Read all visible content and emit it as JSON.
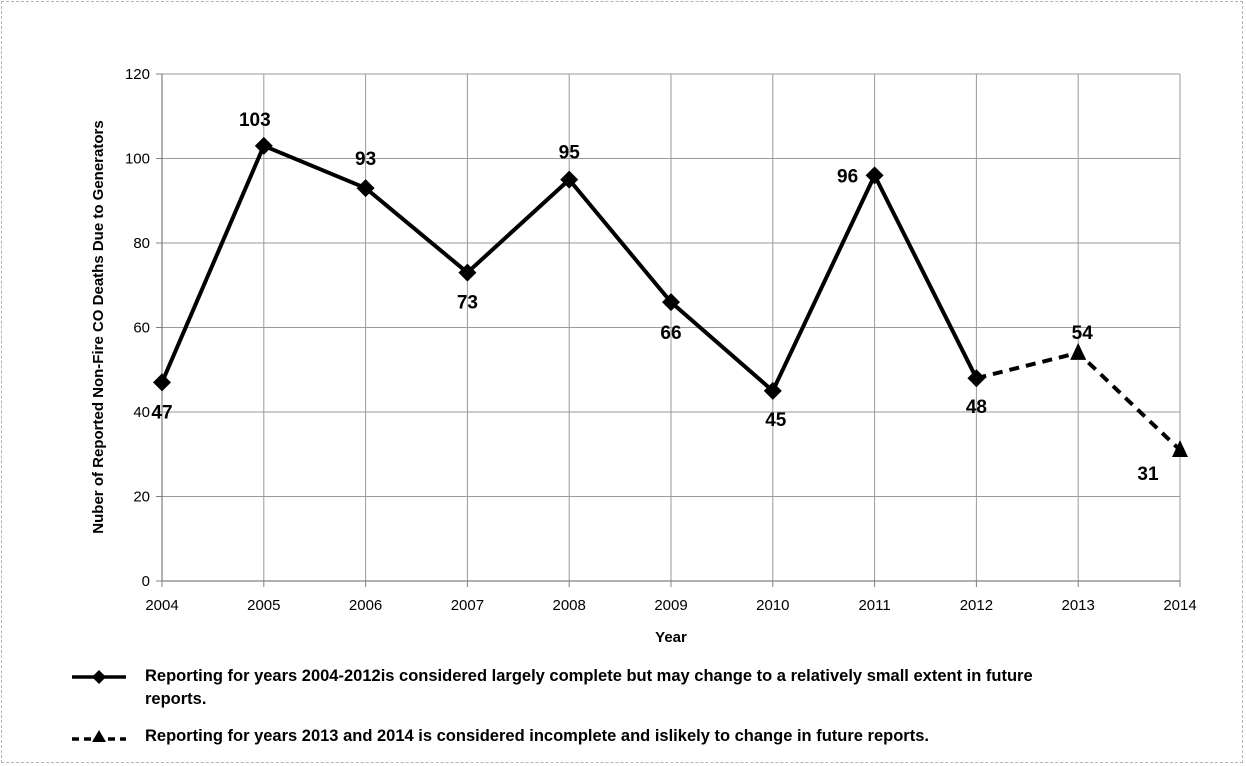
{
  "chart_data": {
    "type": "line",
    "xlabel": "Year",
    "ylabel": "Nuber of Reported Non-Fire CO Deaths Due to Generators",
    "ylim": [
      0,
      120
    ],
    "yticks": [
      0,
      20,
      40,
      60,
      80,
      100,
      120
    ],
    "x": [
      2004,
      2005,
      2006,
      2007,
      2008,
      2009,
      2010,
      2011,
      2012,
      2013,
      2014
    ],
    "grid": true,
    "legend_position": "bottom",
    "series": [
      {
        "name": "Reporting for years 2004-2012is considered largely complete but may change to a relatively small extent in future reports.",
        "x": [
          2004,
          2005,
          2006,
          2007,
          2008,
          2009,
          2010,
          2011,
          2012
        ],
        "values": [
          47,
          103,
          93,
          73,
          95,
          66,
          45,
          96,
          48
        ],
        "marker": "diamond",
        "line": "solid",
        "color": "#000000"
      },
      {
        "name": "Reporting for years 2013 and 2014 is considered incomplete and islikely to change in future reports.",
        "x": [
          2012,
          2013,
          2014
        ],
        "values": [
          48,
          54,
          31
        ],
        "marker": "triangle",
        "line": "dashed",
        "color": "#000000"
      }
    ],
    "data_labels": [
      {
        "x": 2004,
        "text": "47"
      },
      {
        "x": 2005,
        "text": "103"
      },
      {
        "x": 2006,
        "text": "93"
      },
      {
        "x": 2007,
        "text": "73"
      },
      {
        "x": 2008,
        "text": "95"
      },
      {
        "x": 2009,
        "text": "66"
      },
      {
        "x": 2010,
        "text": "45"
      },
      {
        "x": 2011,
        "text": "96"
      },
      {
        "x": 2012,
        "text": "48"
      },
      {
        "x": 2013,
        "text": "54"
      },
      {
        "x": 2014,
        "text": "31"
      }
    ]
  },
  "legend": {
    "solid_line_line1": "Reporting for years 2004-2012is considered largely complete but may change to a relatively small extent in future",
    "solid_line_line2": "reports.",
    "dashed_line": "Reporting for years 2013 and 2014 is considered incomplete and islikely to change in future reports."
  }
}
